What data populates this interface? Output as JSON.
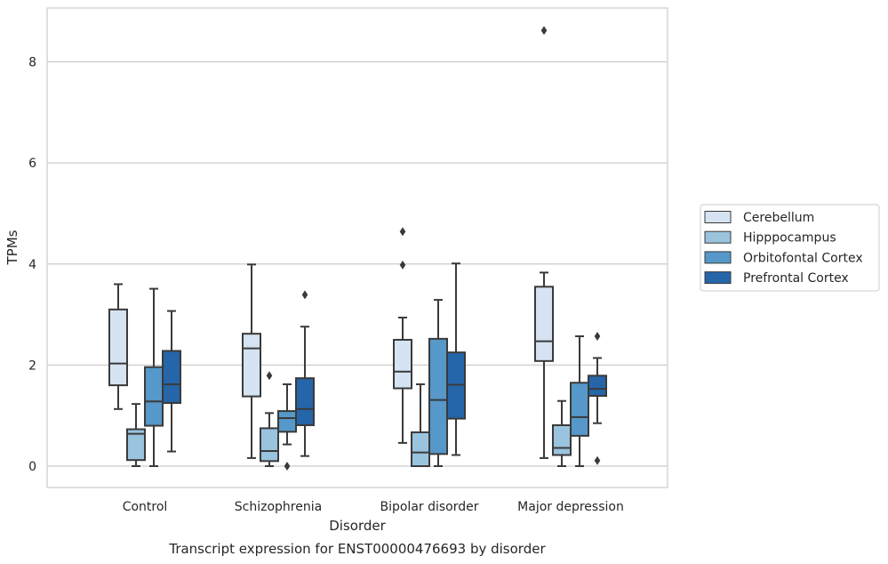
{
  "chart_data": {
    "type": "box",
    "xlabel": "Disorder",
    "ylabel": "TPMs",
    "caption": "Transcript expression for ENST00000476693 by disorder",
    "ylim": [
      -0.42,
      9.07
    ],
    "yticks": [
      "0",
      "2",
      "4",
      "6",
      "8"
    ],
    "categories": [
      "Control",
      "Schizophrenia",
      "Bipolar disorder",
      "Major depression"
    ],
    "grid": "horizontal",
    "legend_position": "right",
    "series": [
      {
        "name": "Cerebellum",
        "color": "#d5e3f2",
        "boxes": [
          {
            "q1": 1.6,
            "median": 2.03,
            "q3": 3.1,
            "whisker_low": 1.13,
            "whisker_high": 3.6,
            "outliers": []
          },
          {
            "q1": 1.38,
            "median": 2.33,
            "q3": 2.62,
            "whisker_low": 0.16,
            "whisker_high": 3.99,
            "outliers": []
          },
          {
            "q1": 1.54,
            "median": 1.87,
            "q3": 2.5,
            "whisker_low": 0.46,
            "whisker_high": 2.94,
            "outliers": [
              3.98,
              4.64
            ]
          },
          {
            "q1": 2.08,
            "median": 2.47,
            "q3": 3.55,
            "whisker_low": 0.16,
            "whisker_high": 3.83,
            "outliers": [
              8.62
            ]
          }
        ]
      },
      {
        "name": "Hipppocampus",
        "color": "#9ac3de",
        "boxes": [
          {
            "q1": 0.12,
            "median": 0.64,
            "q3": 0.73,
            "whisker_low": 0.0,
            "whisker_high": 1.23,
            "outliers": []
          },
          {
            "q1": 0.1,
            "median": 0.3,
            "q3": 0.75,
            "whisker_low": 0.0,
            "whisker_high": 1.05,
            "outliers": [
              1.79
            ]
          },
          {
            "q1": 0.0,
            "median": 0.27,
            "q3": 0.67,
            "whisker_low": 0.0,
            "whisker_high": 1.62,
            "outliers": []
          },
          {
            "q1": 0.22,
            "median": 0.36,
            "q3": 0.81,
            "whisker_low": 0.0,
            "whisker_high": 1.29,
            "outliers": []
          }
        ]
      },
      {
        "name": "Orbitofontal Cortex",
        "color": "#5598c9",
        "boxes": [
          {
            "q1": 0.8,
            "median": 1.28,
            "q3": 1.96,
            "whisker_low": 0.0,
            "whisker_high": 3.51,
            "outliers": []
          },
          {
            "q1": 0.68,
            "median": 0.95,
            "q3": 1.09,
            "whisker_low": 0.43,
            "whisker_high": 1.62,
            "outliers": [
              0.0
            ]
          },
          {
            "q1": 0.24,
            "median": 1.31,
            "q3": 2.52,
            "whisker_low": 0.0,
            "whisker_high": 3.29,
            "outliers": []
          },
          {
            "q1": 0.6,
            "median": 0.97,
            "q3": 1.65,
            "whisker_low": 0.0,
            "whisker_high": 2.57,
            "outliers": []
          }
        ]
      },
      {
        "name": "Prefrontal Cortex",
        "color": "#2565a9",
        "boxes": [
          {
            "q1": 1.25,
            "median": 1.62,
            "q3": 2.28,
            "whisker_low": 0.29,
            "whisker_high": 3.07,
            "outliers": []
          },
          {
            "q1": 0.81,
            "median": 1.13,
            "q3": 1.74,
            "whisker_low": 0.2,
            "whisker_high": 2.76,
            "outliers": [
              3.39
            ]
          },
          {
            "q1": 0.94,
            "median": 1.61,
            "q3": 2.25,
            "whisker_low": 0.22,
            "whisker_high": 4.01,
            "outliers": []
          },
          {
            "q1": 1.39,
            "median": 1.53,
            "q3": 1.79,
            "whisker_low": 0.85,
            "whisker_high": 2.14,
            "outliers": [
              0.11,
              2.57
            ]
          }
        ]
      }
    ]
  }
}
